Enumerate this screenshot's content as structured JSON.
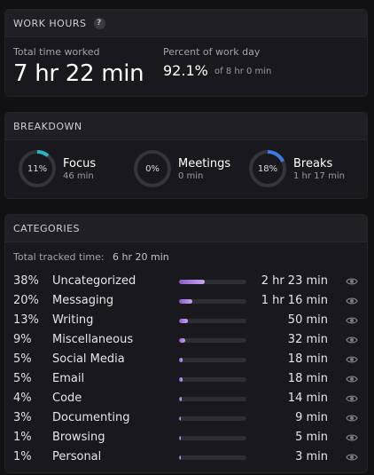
{
  "work_hours": {
    "title": "WORK HOURS",
    "help": "?",
    "total_label": "Total time worked",
    "total_value": "7 hr 22 min",
    "percent_label": "Percent of work day",
    "percent_value": "92.1%",
    "percent_sub": "of 8 hr 0 min"
  },
  "breakdown": {
    "title": "BREAKDOWN",
    "items": [
      {
        "name": "Focus",
        "percent_text": "11%",
        "percent": 11,
        "duration": "46 min",
        "color": "#2bb3c0"
      },
      {
        "name": "Meetings",
        "percent_text": "0%",
        "percent": 0,
        "duration": "0 min",
        "color": "#5b8def"
      },
      {
        "name": "Breaks",
        "percent_text": "18%",
        "percent": 18,
        "duration": "1 hr 17 min",
        "color": "#3d7be0"
      }
    ]
  },
  "categories": {
    "title": "CATEGORIES",
    "tracked_label": "Total tracked time:",
    "tracked_value": "6 hr 20 min",
    "rows": [
      {
        "percent_text": "38%",
        "percent": 38,
        "name": "Uncategorized",
        "duration": "2 hr 23 min"
      },
      {
        "percent_text": "20%",
        "percent": 20,
        "name": "Messaging",
        "duration": "1 hr 16 min"
      },
      {
        "percent_text": "13%",
        "percent": 13,
        "name": "Writing",
        "duration": "50 min"
      },
      {
        "percent_text": "9%",
        "percent": 9,
        "name": "Miscellaneous",
        "duration": "32 min"
      },
      {
        "percent_text": "5%",
        "percent": 5,
        "name": "Social Media",
        "duration": "18 min"
      },
      {
        "percent_text": "5%",
        "percent": 5,
        "name": "Email",
        "duration": "18 min"
      },
      {
        "percent_text": "4%",
        "percent": 4,
        "name": "Code",
        "duration": "14 min"
      },
      {
        "percent_text": "3%",
        "percent": 3,
        "name": "Documenting",
        "duration": "9 min"
      },
      {
        "percent_text": "1%",
        "percent": 1,
        "name": "Browsing",
        "duration": "5 min"
      },
      {
        "percent_text": "1%",
        "percent": 1,
        "name": "Personal",
        "duration": "3 min"
      }
    ]
  }
}
